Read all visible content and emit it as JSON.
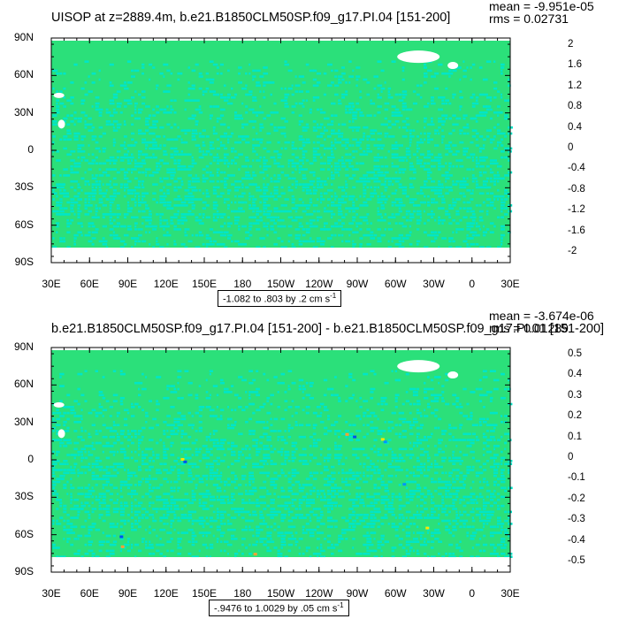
{
  "chart_data": [
    {
      "type": "heatmap",
      "title": "UISOP at z=2889.4m, b.e21.B1850CLM50SP.f09_g17.PI.04 [151-200]",
      "stats": {
        "mean": "mean = -9.951e-05",
        "rms": "rms = 0.02731"
      },
      "y_ticks": [
        "90N",
        "60N",
        "30N",
        "0",
        "30S",
        "60S",
        "90S"
      ],
      "x_ticks": [
        "30E",
        "60E",
        "90E",
        "120E",
        "150E",
        "180",
        "150W",
        "120W",
        "90W",
        "60W",
        "30W",
        "0",
        "30E"
      ],
      "colorbar_labels": [
        "2",
        "1.6",
        "1.2",
        "0.8",
        "0.4",
        "0",
        "-0.4",
        "-0.8",
        "-1.2",
        "-1.6",
        "-2"
      ],
      "colorbar_colors": [
        "#c80000",
        "#ee0000",
        "#ff4a1e",
        "#ff7d1e",
        "#ffa032",
        "#ffbe46",
        "#ffe600",
        "#ffff00",
        "#a0e632",
        "#1ed21e",
        "#2be07a",
        "#00e6c8",
        "#00ffff",
        "#00d2ff",
        "#0096ff",
        "#0050f0",
        "#0000c8",
        "#a000c8",
        "#ff00ff",
        "#c8c8c8",
        "#707070"
      ],
      "contour_info": "-1.082 to .803 by .2 cm s",
      "contour_unit_sup": "-1",
      "base_color": "#2be07a",
      "secondary_color": "#00e6c8",
      "extremes": []
    },
    {
      "type": "heatmap",
      "title": "b.e21.B1850CLM50SP.f09_g17.PI.04 [151-200] - b.e21.B1850CLM50SP.f09_g17.PI.01 [151-200]",
      "stats": {
        "mean": "mean = -3.674e-06",
        "rms": "rms = 0.01289"
      },
      "y_ticks": [
        "90N",
        "60N",
        "30N",
        "0",
        "30S",
        "60S",
        "90S"
      ],
      "x_ticks": [
        "30E",
        "60E",
        "90E",
        "120E",
        "150E",
        "180",
        "150W",
        "120W",
        "90W",
        "60W",
        "30W",
        "0",
        "30E"
      ],
      "colorbar_labels": [
        "0.5",
        "0.4",
        "0.3",
        "0.2",
        "0.1",
        "0",
        "-0.1",
        "-0.2",
        "-0.3",
        "-0.4",
        "-0.5"
      ],
      "colorbar_colors": [
        "#c80000",
        "#ee0000",
        "#ff4a1e",
        "#ff7d1e",
        "#ffa032",
        "#ffbe46",
        "#ffe600",
        "#ffff00",
        "#a0e632",
        "#1ed21e",
        "#2be07a",
        "#00e6c8",
        "#00ffff",
        "#00d2ff",
        "#0096ff",
        "#0050f0",
        "#0000c8",
        "#a000c8",
        "#ff00ff",
        "#c8c8c8",
        "#707070"
      ],
      "contour_info": "-.9476 to 1.0029 by .05 cm s",
      "contour_unit_sup": "-1",
      "base_color": "#2be07a",
      "secondary_color": "#00e6c8",
      "extremes": [
        {
          "lon": 133,
          "lat": 0,
          "color": "#ffe600"
        },
        {
          "lon": 135,
          "lat": -2,
          "color": "#0050f0"
        },
        {
          "lon": 262,
          "lat": 20,
          "color": "#ffa032"
        },
        {
          "lon": 268,
          "lat": 18,
          "color": "#0050f0"
        },
        {
          "lon": 290,
          "lat": 16,
          "color": "#ffe600"
        },
        {
          "lon": 292,
          "lat": 14,
          "color": "#0096ff"
        },
        {
          "lon": 85,
          "lat": -62,
          "color": "#0050f0"
        },
        {
          "lon": 86,
          "lat": -70,
          "color": "#ffa032"
        },
        {
          "lon": 190,
          "lat": -76,
          "color": "#ffa032"
        },
        {
          "lon": 325,
          "lat": -55,
          "color": "#ffe600"
        },
        {
          "lon": 307,
          "lat": -20,
          "color": "#0096ff"
        }
      ]
    }
  ]
}
